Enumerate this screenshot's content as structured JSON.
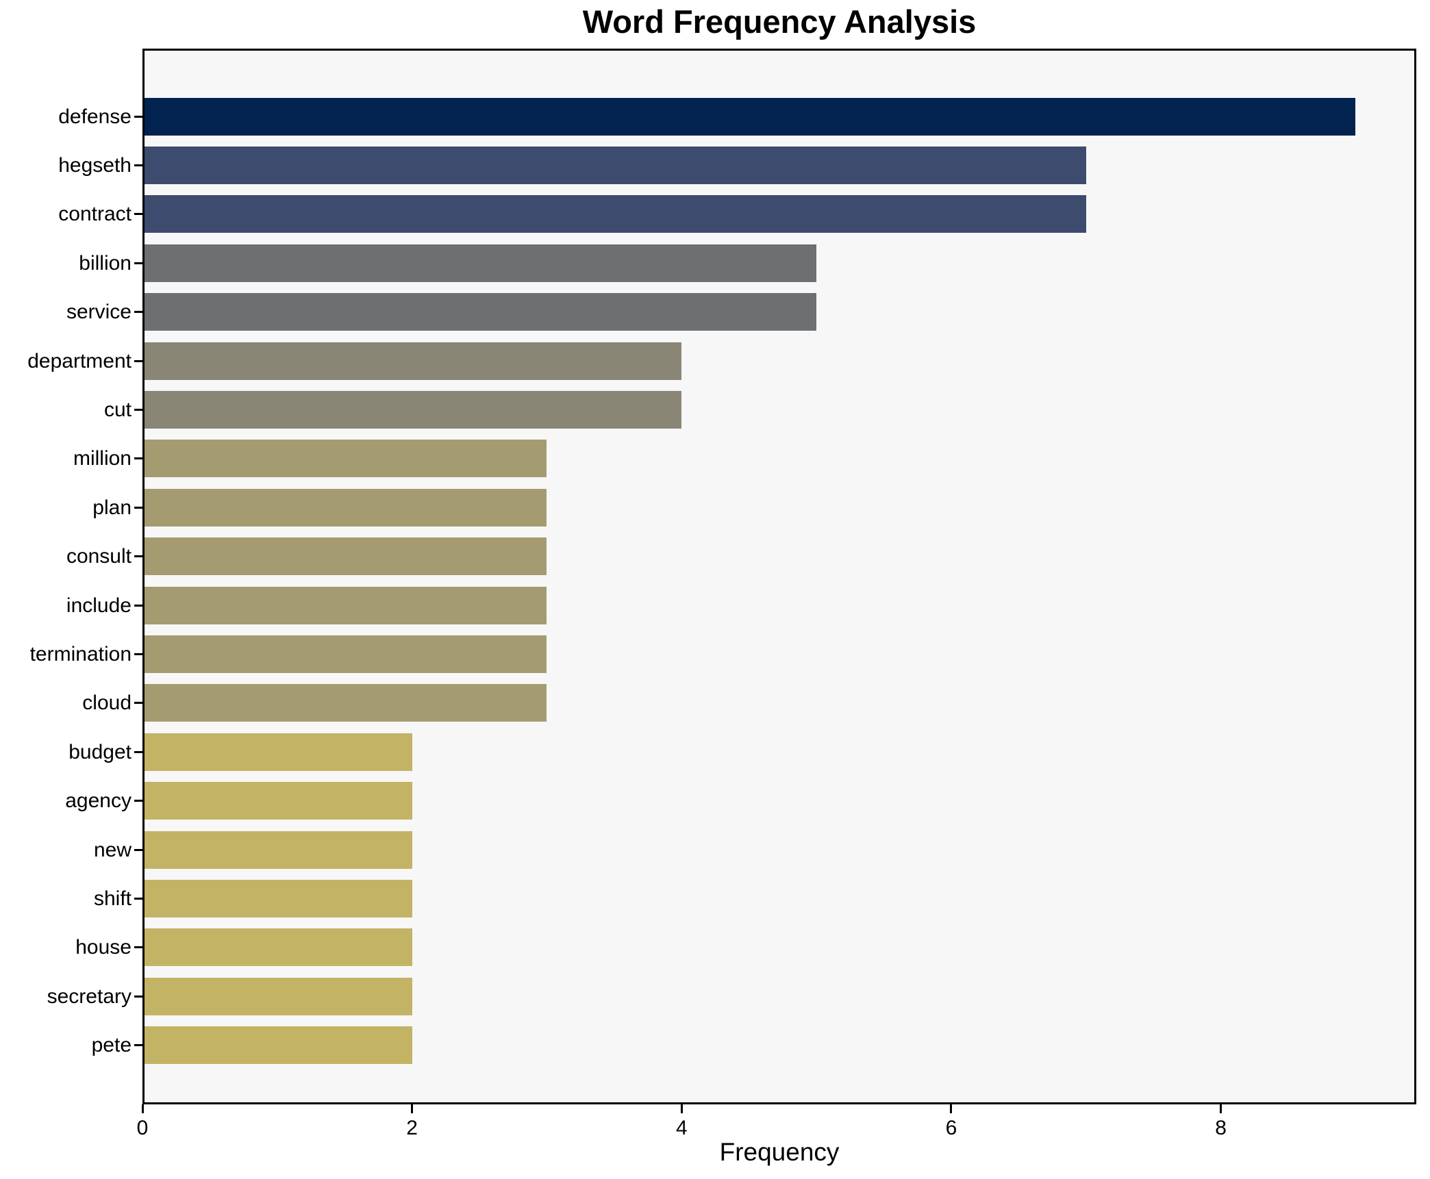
{
  "chart_data": {
    "type": "bar",
    "orientation": "horizontal",
    "title": "Word Frequency Analysis",
    "xlabel": "Frequency",
    "ylabel": "",
    "categories": [
      "defense",
      "hegseth",
      "contract",
      "billion",
      "service",
      "department",
      "cut",
      "million",
      "plan",
      "consult",
      "include",
      "termination",
      "cloud",
      "budget",
      "agency",
      "new",
      "shift",
      "house",
      "secretary",
      "pete"
    ],
    "values": [
      9,
      7,
      7,
      5,
      5,
      4,
      4,
      3,
      3,
      3,
      3,
      3,
      3,
      2,
      2,
      2,
      2,
      2,
      2,
      2
    ],
    "bar_colors": [
      "#02224f",
      "#3d4b6e",
      "#3d4b6e",
      "#6e6f71",
      "#6e6f71",
      "#8a8676",
      "#8a8676",
      "#a59b71",
      "#a59b71",
      "#a59b71",
      "#a59b71",
      "#a59b71",
      "#a59b71",
      "#c3b365",
      "#c3b365",
      "#c3b365",
      "#c3b365",
      "#c3b365",
      "#c3b365",
      "#c3b365"
    ],
    "xlim": [
      0,
      9.45
    ],
    "xticks": [
      0,
      2,
      4,
      6,
      8
    ],
    "grid": false,
    "legend": null,
    "plot_bg": "#f7f7f7",
    "figure_bg": "#ffffff",
    "spine_color": "#000000"
  }
}
